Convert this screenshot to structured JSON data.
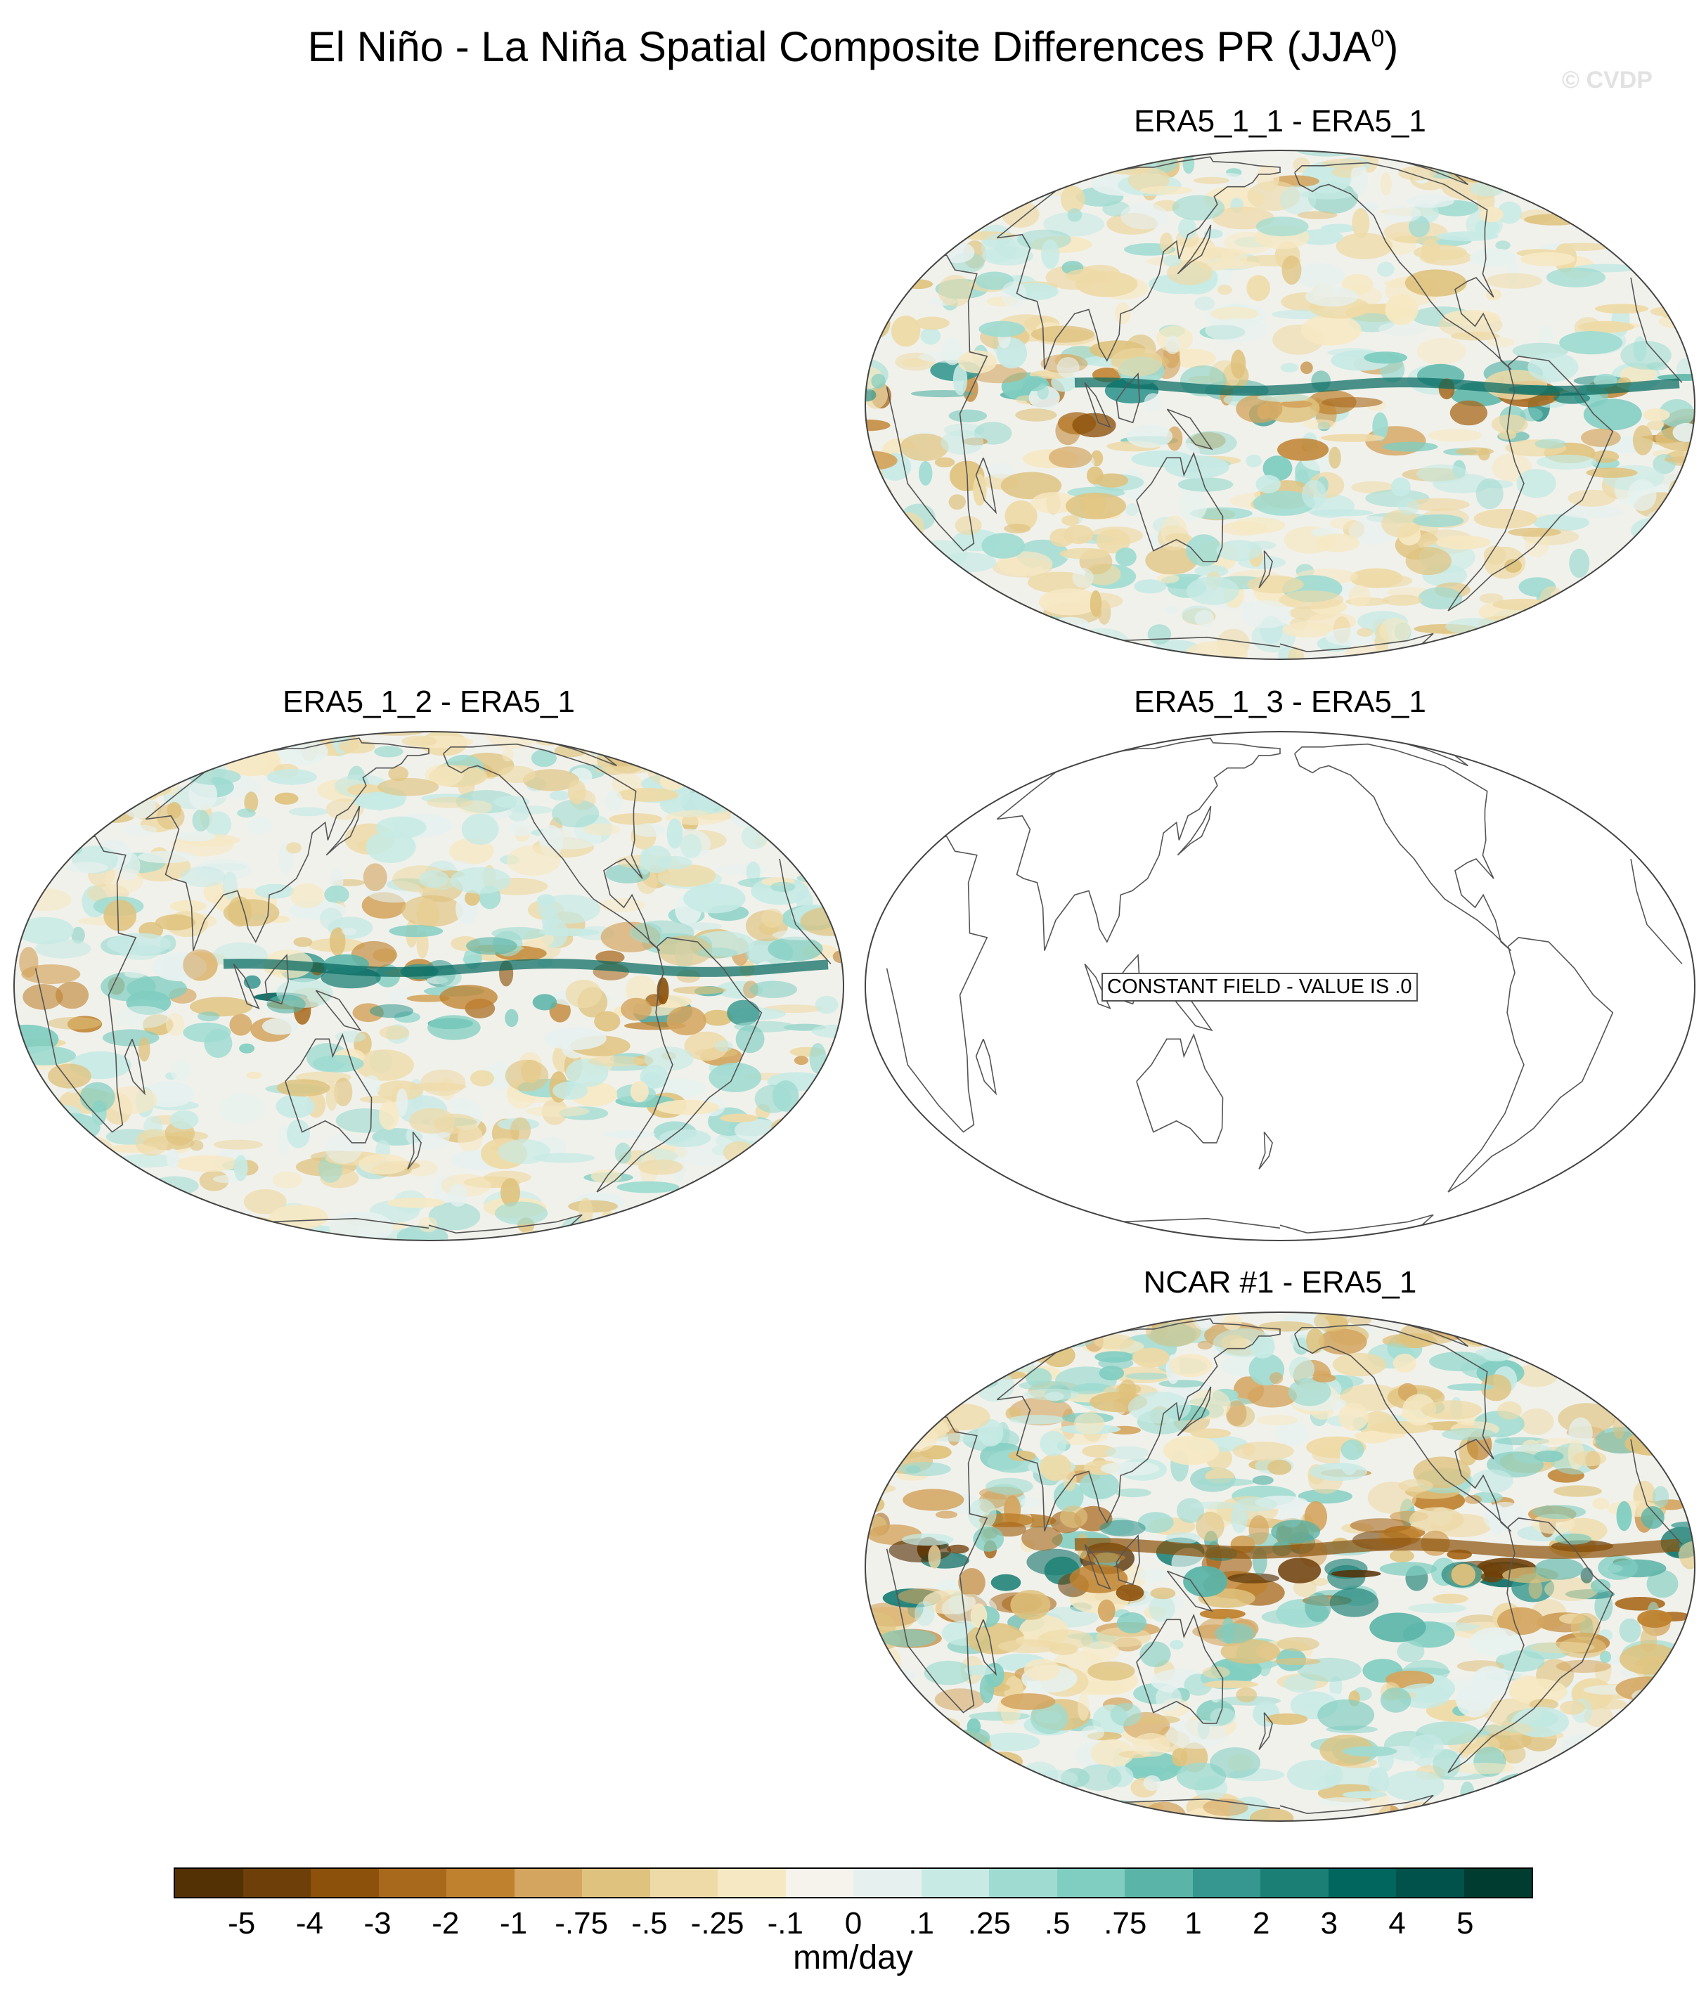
{
  "title": "El Niño - La Niña Spatial Composite Differences PR (JJA",
  "title_superscript": "0",
  "title_close": ")",
  "watermark": "© CVDP",
  "panels": [
    {
      "id": "p1",
      "title": "ERA5_1_1 - ERA5_1",
      "constant": false,
      "strength": 0.55
    },
    {
      "id": "p2",
      "title": "ERA5_1_2 - ERA5_1",
      "constant": false,
      "strength": 0.6
    },
    {
      "id": "p3",
      "title": "ERA5_1_3 - ERA5_1",
      "constant": true,
      "constant_label": "CONSTANT FIELD - VALUE IS .0"
    },
    {
      "id": "p4",
      "title": "NCAR #1 - ERA5_1",
      "constant": false,
      "strength": 1.0
    }
  ],
  "colorbar": {
    "units": "mm/day",
    "labels": [
      "-5",
      "-4",
      "-3",
      "-2",
      "-1",
      "-.75",
      "-.5",
      "-.25",
      "-.1",
      "0",
      ".1",
      ".25",
      ".5",
      ".75",
      "1",
      "2",
      "3",
      "4",
      "5"
    ],
    "colors": [
      "#543005",
      "#6f3f09",
      "#8c510a",
      "#a8691d",
      "#bf812d",
      "#d4a55f",
      "#dfc27d",
      "#eedaa7",
      "#f6e8c3",
      "#f5f3ec",
      "#e6f1ef",
      "#c7eae5",
      "#9fdbd1",
      "#80cdc1",
      "#5ab4a8",
      "#35978f",
      "#1b7f75",
      "#01665e",
      "#01524b",
      "#003c30"
    ]
  }
}
